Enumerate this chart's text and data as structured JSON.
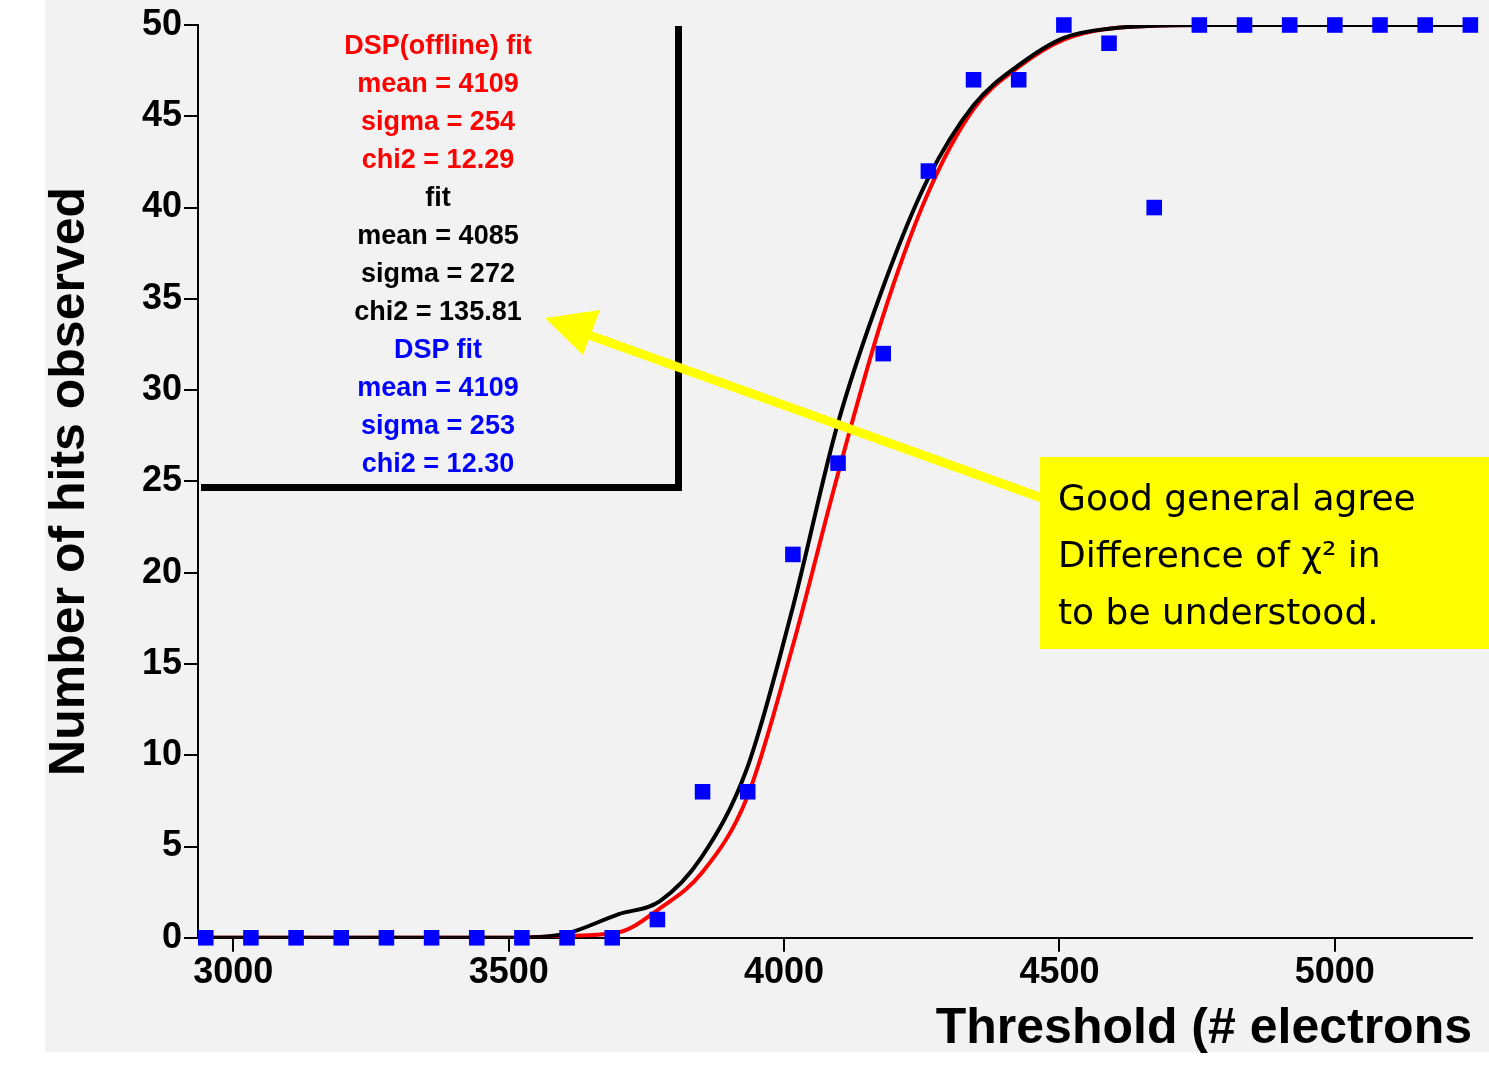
{
  "chart_data": {
    "type": "scatter",
    "xlabel": "Threshold (# electrons",
    "ylabel": "Number of hits observed",
    "xlim": [
      2936,
      5249
    ],
    "ylim": [
      0,
      50
    ],
    "xticks": [
      3000,
      3500,
      4000,
      4500,
      5000
    ],
    "yticks": [
      0,
      5,
      10,
      15,
      20,
      25,
      30,
      35,
      40,
      45,
      50
    ],
    "grid": false,
    "legend": false,
    "series": [
      {
        "type": "line",
        "marker": "none",
        "color": "#000000",
        "x": [
          2950,
          3500,
          3600,
          3700,
          3774,
          3850,
          3933,
          4015,
          4096,
          4178,
          4260,
          4344,
          4426,
          4508,
          4590,
          4760,
          5246
        ],
        "values": [
          0,
          0,
          0.2,
          1.3,
          2,
          4.4,
          9.3,
          18,
          28,
          35.5,
          41.5,
          45.6,
          47.8,
          49.3,
          49.8,
          50,
          50
        ]
      },
      {
        "type": "line",
        "marker": "none",
        "color": "#ff0000",
        "x": [
          2950,
          3500,
          3600,
          3700,
          3774,
          3852,
          3933,
          4015,
          4096,
          4178,
          4260,
          4344,
          4426,
          4508,
          4590,
          4760,
          5246
        ],
        "values": [
          0,
          0,
          0.1,
          0.3,
          1.6,
          3.6,
          7.7,
          15.9,
          25.2,
          33.9,
          40.7,
          45.4,
          47.7,
          49.2,
          49.8,
          50,
          50
        ]
      },
      {
        "type": "scatter",
        "marker": "square",
        "color": "#0000ff",
        "x": [
          2950,
          3032,
          3114,
          3196,
          3278,
          3360,
          3442,
          3524,
          3606,
          3688,
          3770,
          3852,
          3934,
          4016,
          4098,
          4180,
          4262,
          4344,
          4426,
          4508,
          4590,
          4672,
          4754,
          4836,
          4918,
          5000,
          5082,
          5164,
          5246
        ],
        "values": [
          0,
          0,
          0,
          0,
          0,
          0,
          0,
          0,
          0,
          0,
          1,
          8,
          8,
          21,
          26,
          32,
          42,
          47,
          47,
          50,
          49,
          40,
          50,
          50,
          50,
          50,
          50,
          50,
          50
        ]
      }
    ],
    "annotations": [
      "DSP(offline) fit",
      "mean = 4109",
      "sigma = 254",
      "chi2 = 12.29",
      "fit",
      "mean = 4085",
      "sigma = 272",
      "chi2 = 135.81",
      "DSP fit",
      "mean = 4109",
      "sigma = 253",
      "chi2 = 12.30",
      "Good general agree\nDifference of χ² in\nto be understood."
    ]
  }
}
